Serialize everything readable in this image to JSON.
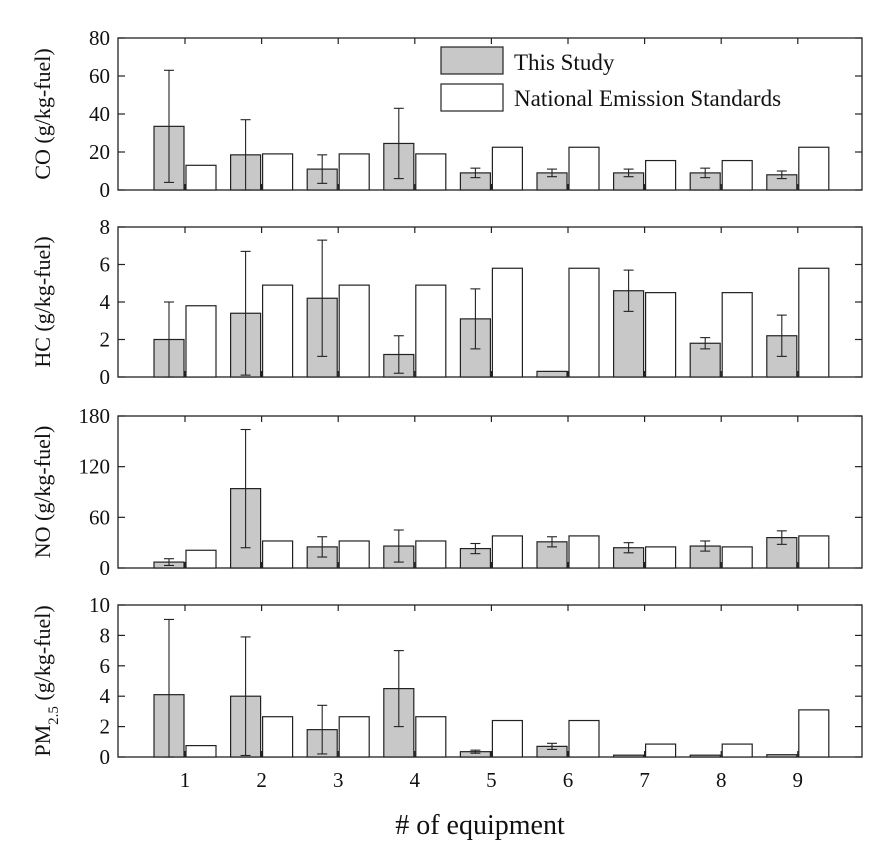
{
  "chart_data": [
    {
      "type": "bar",
      "title": "",
      "ylabel": "CO (g/kg-fuel)",
      "ylim": [
        0,
        80
      ],
      "yticks": [
        0,
        20,
        40,
        60,
        80
      ],
      "categories": [
        "1",
        "2",
        "3",
        "4",
        "5",
        "6",
        "7",
        "8",
        "9"
      ],
      "series": [
        {
          "name": "This Study",
          "values": [
            33.5,
            18.5,
            11,
            24.5,
            9,
            9,
            9,
            9,
            8
          ],
          "error": [
            29.5,
            18.5,
            7.5,
            18.5,
            2.5,
            2,
            2,
            2.5,
            2
          ]
        },
        {
          "name": "National Emission Standards",
          "values": [
            13,
            19,
            19,
            19,
            22.5,
            22.5,
            15.5,
            15.5,
            22.5
          ]
        }
      ]
    },
    {
      "type": "bar",
      "title": "",
      "ylabel": "HC (g/kg-fuel)",
      "ylim": [
        0,
        8
      ],
      "yticks": [
        0,
        2,
        4,
        6,
        8
      ],
      "categories": [
        "1",
        "2",
        "3",
        "4",
        "5",
        "6",
        "7",
        "8",
        "9"
      ],
      "series": [
        {
          "name": "This Study",
          "values": [
            2.0,
            3.4,
            4.2,
            1.2,
            3.1,
            0.3,
            4.6,
            1.8,
            2.2
          ],
          "error": [
            2.0,
            3.3,
            3.1,
            1.0,
            1.6,
            0,
            1.1,
            0.3,
            1.1
          ]
        },
        {
          "name": "National Emission Standards",
          "values": [
            3.8,
            4.9,
            4.9,
            4.9,
            5.8,
            5.8,
            4.5,
            4.5,
            5.8
          ]
        }
      ]
    },
    {
      "type": "bar",
      "title": "",
      "ylabel": "NO (g/kg-fuel)",
      "ylim": [
        0,
        180
      ],
      "yticks": [
        0,
        60,
        120,
        180
      ],
      "categories": [
        "1",
        "2",
        "3",
        "4",
        "5",
        "6",
        "7",
        "8",
        "9"
      ],
      "series": [
        {
          "name": "This Study",
          "values": [
            7,
            94,
            25,
            26,
            23,
            31,
            24,
            26,
            36
          ],
          "error": [
            4,
            70,
            12,
            19,
            6,
            6,
            6,
            6,
            8
          ]
        },
        {
          "name": "National Emission Standards",
          "values": [
            21,
            32,
            32,
            32,
            38,
            38,
            25,
            25,
            38
          ]
        }
      ]
    },
    {
      "type": "bar",
      "title": "",
      "ylabel_main": "PM",
      "ylabel_sub": "2.5",
      "ylabel_rest": " (g/kg-fuel)",
      "ylim": [
        0,
        10
      ],
      "yticks": [
        0,
        2,
        4,
        6,
        8,
        10
      ],
      "categories": [
        "1",
        "2",
        "3",
        "4",
        "5",
        "6",
        "7",
        "8",
        "9"
      ],
      "series": [
        {
          "name": "This Study",
          "values": [
            4.1,
            4.0,
            1.8,
            4.5,
            0.35,
            0.7,
            0.12,
            0.12,
            0.15
          ],
          "error": [
            4.95,
            3.9,
            1.6,
            2.5,
            0.1,
            0.2,
            0,
            0,
            0
          ]
        },
        {
          "name": "National Emission Standards",
          "values": [
            0.75,
            2.65,
            2.65,
            2.65,
            2.4,
            2.4,
            0.85,
            0.85,
            3.1
          ]
        }
      ]
    }
  ],
  "xlabel": "# of equipment",
  "legend": {
    "position": "top-right",
    "entries": [
      "This Study",
      "National Emission Standards"
    ]
  },
  "colors": {
    "study": "#c8c8c8",
    "standard": "#ffffff",
    "stroke": "#222222"
  }
}
